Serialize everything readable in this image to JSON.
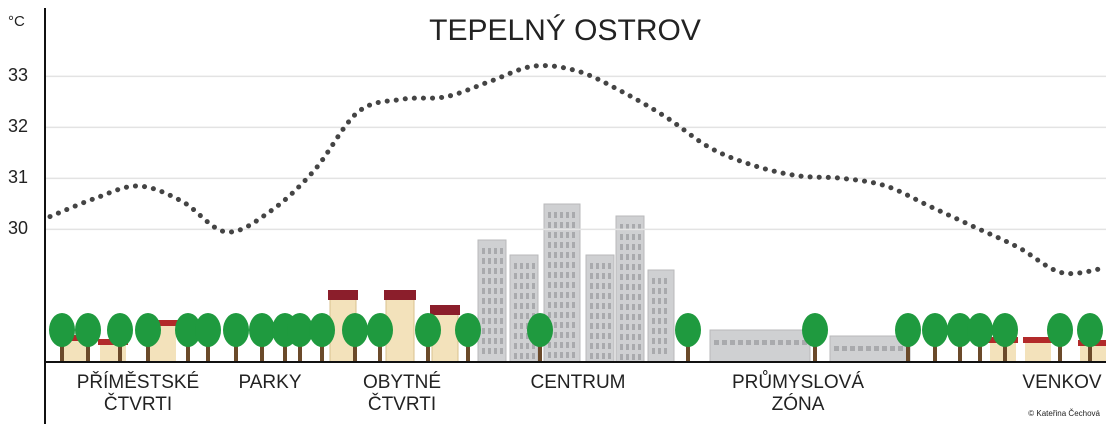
{
  "chart_data": {
    "type": "line",
    "title": "TEPELNÝ OSTROV",
    "y_label": "°C",
    "credit": "© Kateřina Čechová",
    "categories": [
      null,
      null,
      "PŘÍMĚSTSKÉ\nČTVRTI",
      null,
      null,
      "PARKY",
      null,
      null,
      "OBYTNÉ\nČTVRTI",
      null,
      null,
      null,
      "CENTRUM",
      null,
      null,
      null,
      null,
      "PRŮMYSLOVÁ\nZÓNA",
      null,
      null,
      null,
      null,
      null,
      "VENKOV",
      null
    ],
    "values": [
      30.25,
      30.6,
      30.85,
      30.55,
      29.95,
      30.35,
      31.15,
      32.3,
      32.55,
      32.6,
      32.9,
      33.2,
      33.1,
      32.7,
      32.2,
      31.6,
      31.25,
      31.05,
      31.0,
      30.85,
      30.45,
      30.05,
      29.65,
      29.15,
      29.25
    ],
    "color": "#444444",
    "ylim": [
      27.4,
      34.3
    ],
    "yticks": [
      30,
      31,
      32,
      33
    ],
    "grid": true
  }
}
